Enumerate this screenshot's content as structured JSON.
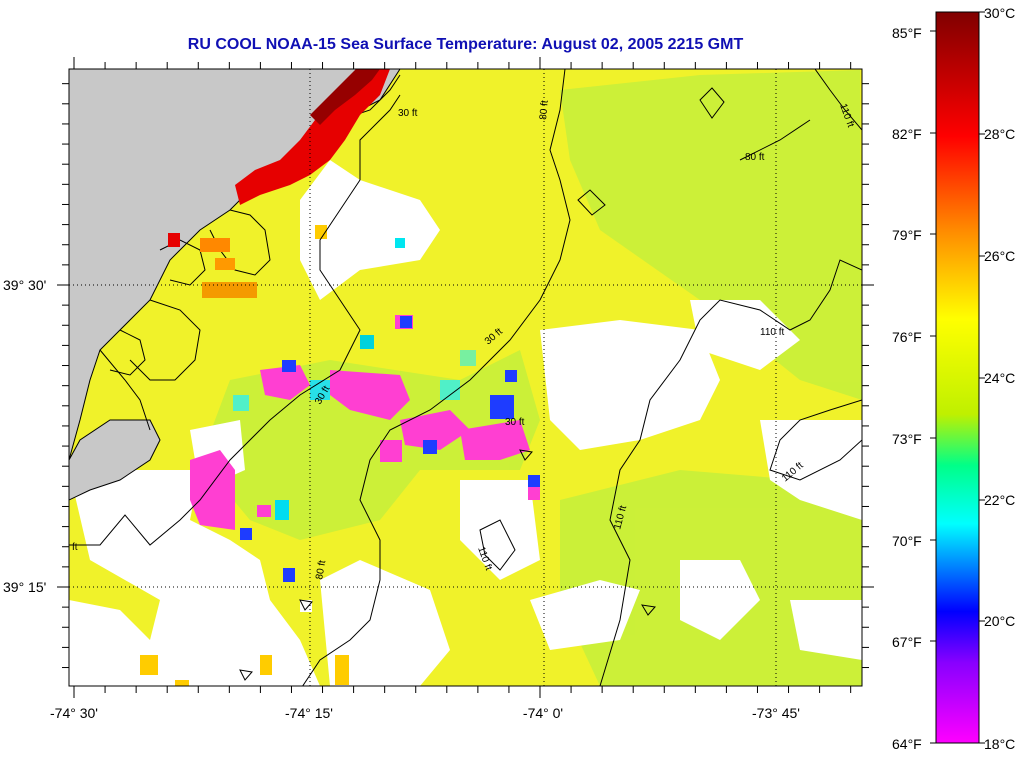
{
  "title": "RU COOL  NOAA-15  Sea Surface Temperature:  August 02, 2005 2215 GMT",
  "map": {
    "lon_labels": [
      "-74° 30'",
      "-74° 15'",
      "-74° 0'",
      "-73° 45'"
    ],
    "lat_labels": [
      "39° 30'",
      "39° 15'"
    ],
    "contours": {
      "c30": "30 ft",
      "c80": "80 ft",
      "c110": "110 ft",
      "edge_ft": "ft"
    },
    "colors": {
      "land": "#c8c8c8",
      "nodata": "#ffffff",
      "base_sst": "#f0f22a",
      "warm_sst": "#e60000",
      "cool_sst": "#ff3fd2"
    }
  },
  "colorbar": {
    "fahrenheit_labels": [
      "85°F",
      "82°F",
      "79°F",
      "76°F",
      "73°F",
      "70°F",
      "67°F",
      "64°F"
    ],
    "celsius_labels": [
      "30°C",
      "28°C",
      "26°C",
      "24°C",
      "22°C",
      "20°C",
      "18°C"
    ],
    "range_celsius": [
      18,
      30
    ],
    "gradient_stops": [
      "#800000",
      "#ff0000",
      "#ff8800",
      "#ffff00",
      "#00ff88",
      "#00ffff",
      "#0000ff",
      "#8800ff",
      "#ff00ff"
    ]
  }
}
